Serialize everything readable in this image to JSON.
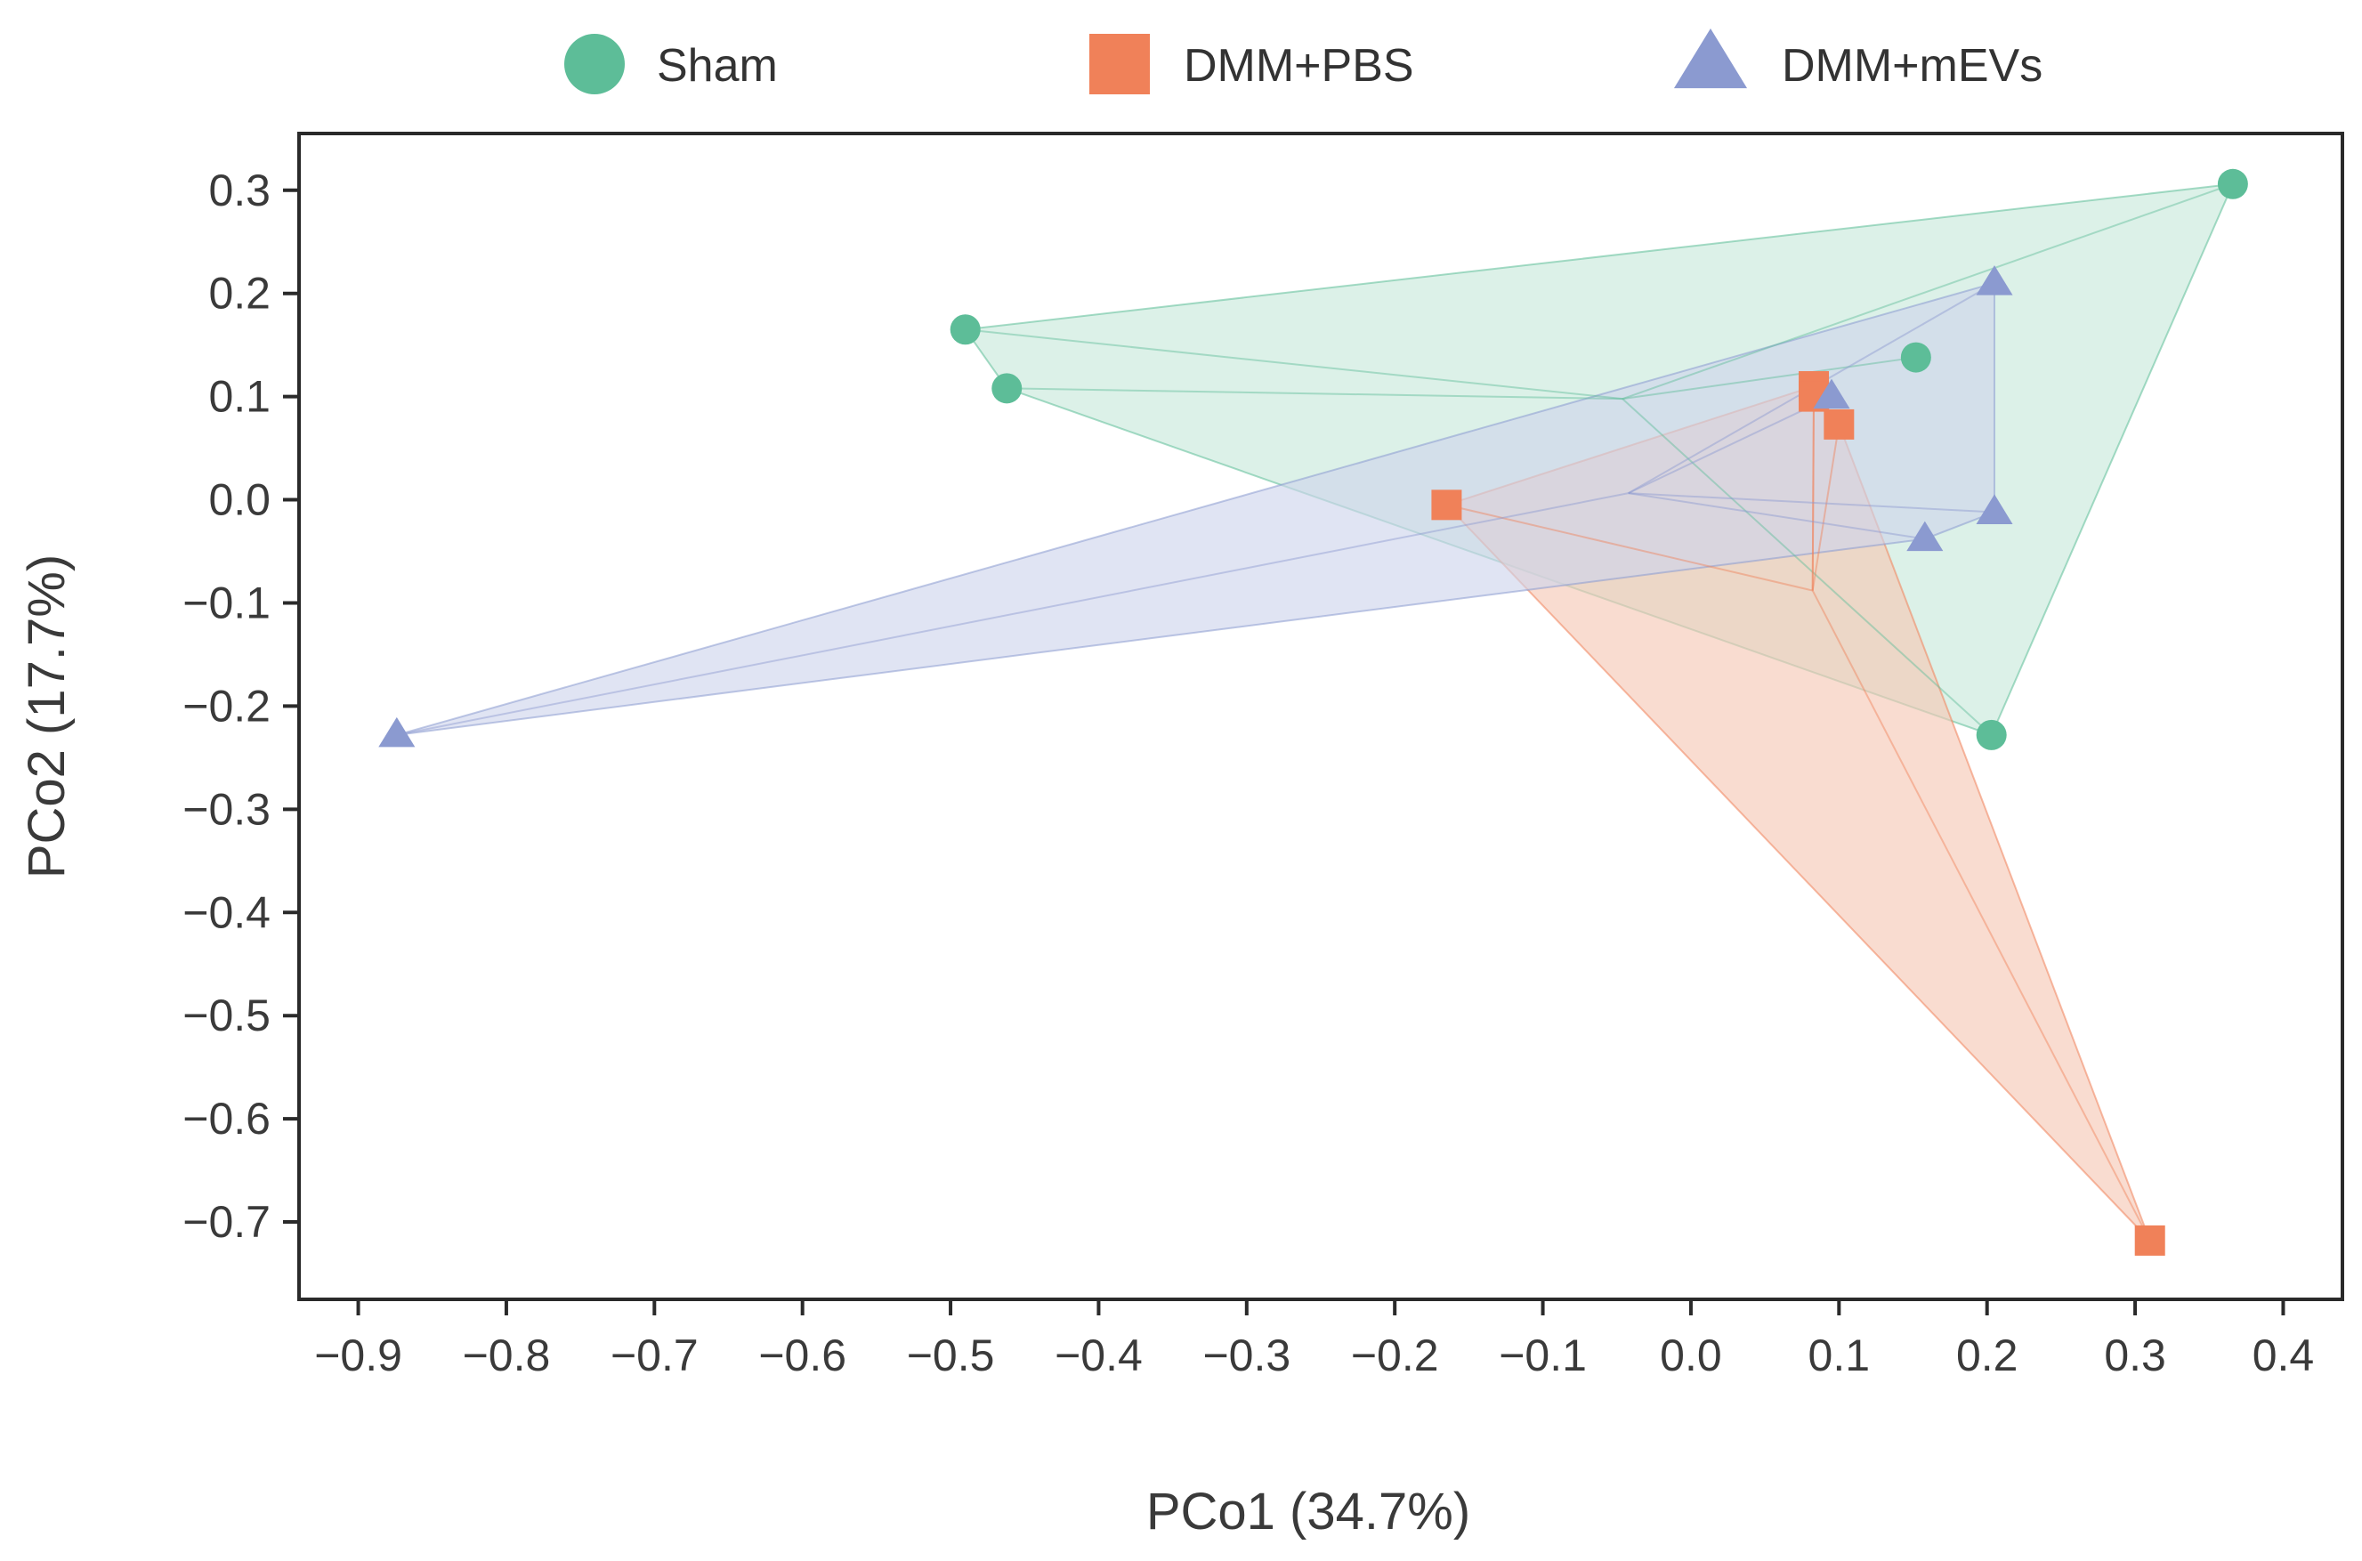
{
  "chart_data": {
    "type": "scatter",
    "title": "",
    "xlabel": "PCo1 (34.7%)",
    "ylabel": "PCo2 (17.7%)",
    "xlim": [
      -0.94,
      0.44
    ],
    "ylim": [
      -0.775,
      0.355
    ],
    "xticks": [
      -0.9,
      -0.8,
      -0.7,
      -0.6,
      -0.5,
      -0.4,
      -0.3,
      -0.2,
      -0.1,
      0.0,
      0.1,
      0.2,
      0.3,
      0.4
    ],
    "xtick_labels": [
      "−0.9",
      "−0.8",
      "−0.7",
      "−0.6",
      "−0.5",
      "−0.4",
      "−0.3",
      "−0.2",
      "−0.1",
      "0.0",
      "0.1",
      "0.2",
      "0.3",
      "0.4"
    ],
    "yticks": [
      0.3,
      0.2,
      0.1,
      0.0,
      -0.1,
      -0.2,
      -0.3,
      -0.4,
      -0.5,
      -0.6,
      -0.7
    ],
    "ytick_labels": [
      "0.3",
      "0.2",
      "0.1",
      "0.0",
      "−0.1",
      "−0.2",
      "−0.3",
      "−0.4",
      "−0.5",
      "−0.6",
      "−0.7"
    ],
    "grid": false,
    "legend_position": "top",
    "series": [
      {
        "name": "Sham",
        "marker": "circle",
        "color": "#5dbd98",
        "fill": "#c6e9da",
        "points": [
          [
            -0.49,
            0.165
          ],
          [
            -0.462,
            0.108
          ],
          [
            0.152,
            0.138
          ],
          [
            0.366,
            0.306
          ],
          [
            0.203,
            -0.228
          ]
        ]
      },
      {
        "name": "DMM+PBS",
        "marker": "square",
        "color": "#f08159",
        "fill": "#f6c7b3",
        "points": [
          [
            -0.165,
            -0.005
          ],
          [
            0.083,
            0.11
          ],
          [
            0.083,
            0.1
          ],
          [
            0.1,
            0.073
          ],
          [
            0.31,
            -0.718
          ]
        ]
      },
      {
        "name": "DMM+mEVs",
        "marker": "triangle",
        "color": "#8b9ad0",
        "fill": "#cdd3ec",
        "points": [
          [
            -0.874,
            -0.228
          ],
          [
            0.095,
            0.1
          ],
          [
            0.158,
            -0.038
          ],
          [
            0.205,
            -0.012
          ],
          [
            0.205,
            0.21
          ]
        ]
      }
    ]
  }
}
